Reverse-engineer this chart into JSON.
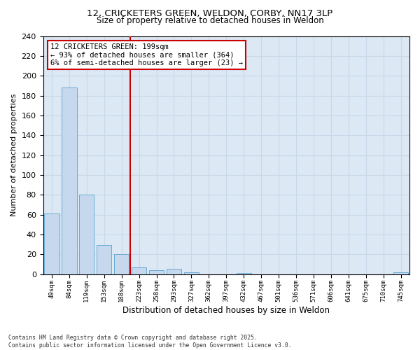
{
  "title_line1": "12, CRICKETERS GREEN, WELDON, CORBY, NN17 3LP",
  "title_line2": "Size of property relative to detached houses in Weldon",
  "xlabel": "Distribution of detached houses by size in Weldon",
  "ylabel": "Number of detached properties",
  "categories": [
    "49sqm",
    "84sqm",
    "119sqm",
    "153sqm",
    "188sqm",
    "223sqm",
    "258sqm",
    "293sqm",
    "327sqm",
    "362sqm",
    "397sqm",
    "432sqm",
    "467sqm",
    "501sqm",
    "536sqm",
    "571sqm",
    "606sqm",
    "641sqm",
    "675sqm",
    "710sqm",
    "745sqm"
  ],
  "values": [
    61,
    188,
    80,
    29,
    20,
    7,
    4,
    5,
    2,
    0,
    0,
    1,
    0,
    0,
    0,
    0,
    0,
    0,
    0,
    0,
    2
  ],
  "bar_color": "#c5d8ee",
  "bar_edge_color": "#6aaad4",
  "reference_line_color": "#cc0000",
  "annotation_text": "12 CRICKETERS GREEN: 199sqm\n← 93% of detached houses are smaller (364)\n6% of semi-detached houses are larger (23) →",
  "annotation_box_color": "#cc0000",
  "ylim": [
    0,
    240
  ],
  "yticks": [
    0,
    20,
    40,
    60,
    80,
    100,
    120,
    140,
    160,
    180,
    200,
    220,
    240
  ],
  "grid_color": "#c8d8e8",
  "background_color": "#dce8f4",
  "fig_facecolor": "#ffffff",
  "footnote": "Contains HM Land Registry data © Crown copyright and database right 2025.\nContains public sector information licensed under the Open Government Licence v3.0."
}
